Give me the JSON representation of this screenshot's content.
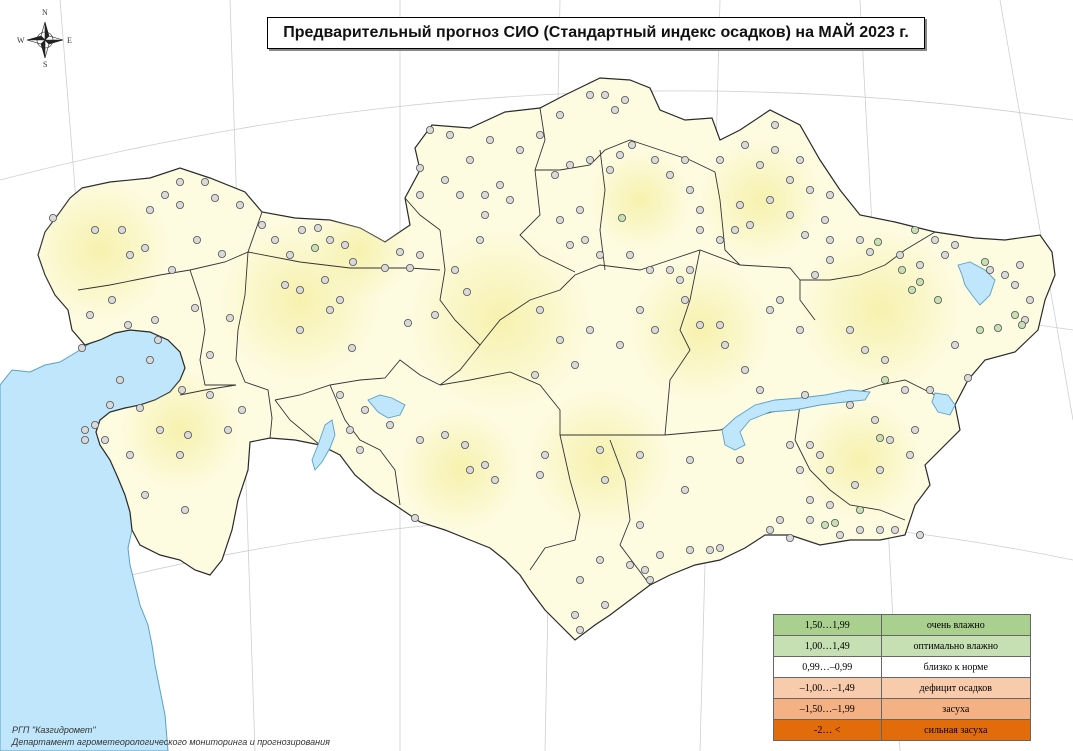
{
  "title": "Предварительный прогноз СИО (Стандартный индекс осадков) на МАЙ 2023 г.",
  "compass": {
    "n": "N",
    "s": "S",
    "e": "E",
    "w": "W"
  },
  "colors": {
    "water": "#bfe6fb",
    "water_outline": "#5aa0c8",
    "land_base": "#fdfbe0",
    "border": "#2a2a2a",
    "station_normal": "#d9d9d9",
    "station_wet": "#c6e0b4"
  },
  "legend": {
    "rows": [
      {
        "range": "1,50…1,99",
        "label": "очень влажно",
        "color": "#a9d08e"
      },
      {
        "range": "1,00…1,49",
        "label": "оптимально влажно",
        "color": "#c6e0b4"
      },
      {
        "range": "0,99…–0,99",
        "label": "близко к норме",
        "color": "#ffffff"
      },
      {
        "range": "–1,00…–1,49",
        "label": "дефицит осадков",
        "color": "#f8cbad"
      },
      {
        "range": "–1,50…–1,99",
        "label": "засуха",
        "color": "#f4b183"
      },
      {
        "range": "-2… <",
        "label": "сильная засуха",
        "color": "#e26b0a"
      }
    ]
  },
  "credits": {
    "line1": "РГП \"Казгидромет\"",
    "line2": "Департамент агрометеорологического мониторинга и прогнозирования"
  }
}
